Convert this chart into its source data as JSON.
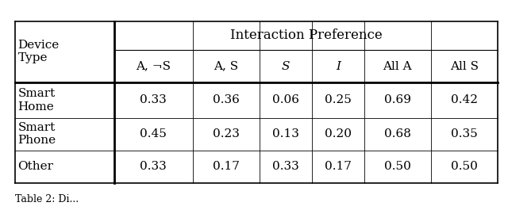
{
  "title": "Interaction Preference",
  "col_header": [
    "A, ¬S",
    "A, S",
    "S",
    "I",
    "All A",
    "All S"
  ],
  "row_header_label": "Device\nType",
  "row_labels": [
    "Smart\nHome",
    "Smart\nPhone",
    "Other"
  ],
  "data": [
    [
      "0.33",
      "0.36",
      "0.06",
      "0.25",
      "0.69",
      "0.42"
    ],
    [
      "0.45",
      "0.23",
      "0.13",
      "0.20",
      "0.68",
      "0.35"
    ],
    [
      "0.33",
      "0.17",
      "0.33",
      "0.17",
      "0.50",
      "0.50"
    ]
  ],
  "caption": "Table 2: Di...",
  "bg_color": "#ffffff",
  "text_color": "#000000",
  "font_size": 11,
  "header_font_size": 12
}
